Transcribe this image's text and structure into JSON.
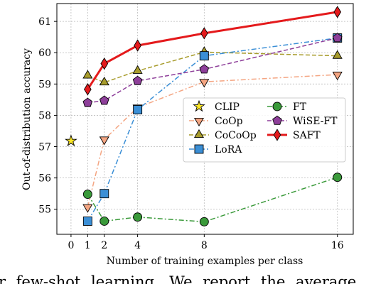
{
  "chart_data": {
    "type": "line",
    "xlabel": "Number of training examples per class",
    "ylabel": "Out-of-distribution accuracy",
    "xlim": [
      -0.85,
      16.95
    ],
    "ylim": [
      54.2,
      61.57
    ],
    "xticks": [
      0,
      1,
      2,
      4,
      8,
      16
    ],
    "yticks": [
      55,
      56,
      57,
      58,
      59,
      60,
      61
    ],
    "grid": true,
    "legend_position": "center right",
    "series": [
      {
        "name": "CLIP",
        "color": "#fde725",
        "marker": "star",
        "linestyle": "none",
        "x": [
          0
        ],
        "values": [
          57.18
        ]
      },
      {
        "name": "CoOp",
        "color": "#f4a582",
        "marker": "triangle-down",
        "linestyle": "dashdot",
        "x": [
          1,
          2,
          4,
          8,
          16
        ],
        "values": [
          55.07,
          57.23,
          58.25,
          59.07,
          59.3
        ]
      },
      {
        "name": "CoCoOp",
        "color": "#a89c2c",
        "marker": "triangle-up",
        "linestyle": "dashed",
        "x": [
          1,
          2,
          4,
          8,
          16
        ],
        "values": [
          59.27,
          59.05,
          59.42,
          60.02,
          59.9
        ]
      },
      {
        "name": "LoRA",
        "color": "#3b8fd6",
        "marker": "square",
        "linestyle": "dashdot",
        "x": [
          1,
          2,
          4,
          8,
          16
        ],
        "values": [
          54.62,
          55.5,
          58.18,
          59.9,
          60.47
        ]
      },
      {
        "name": "FT",
        "color": "#3a9a3a",
        "marker": "circle",
        "linestyle": "dashdot",
        "x": [
          1,
          2,
          4,
          8,
          16
        ],
        "values": [
          55.48,
          54.62,
          54.75,
          54.6,
          56.02
        ]
      },
      {
        "name": "WiSE-FT",
        "color": "#8e3f9a",
        "marker": "pentagon",
        "linestyle": "dashed",
        "x": [
          1,
          2,
          4,
          8,
          16
        ],
        "values": [
          58.4,
          58.47,
          59.1,
          59.47,
          60.47
        ]
      },
      {
        "name": "SAFT",
        "color": "#e41a1c",
        "marker": "diamond",
        "linestyle": "solid",
        "x": [
          1,
          2,
          4,
          8,
          16
        ],
        "values": [
          58.83,
          59.65,
          60.23,
          60.62,
          61.3
        ]
      }
    ]
  },
  "caption": "r few-shot learning. We report the average"
}
